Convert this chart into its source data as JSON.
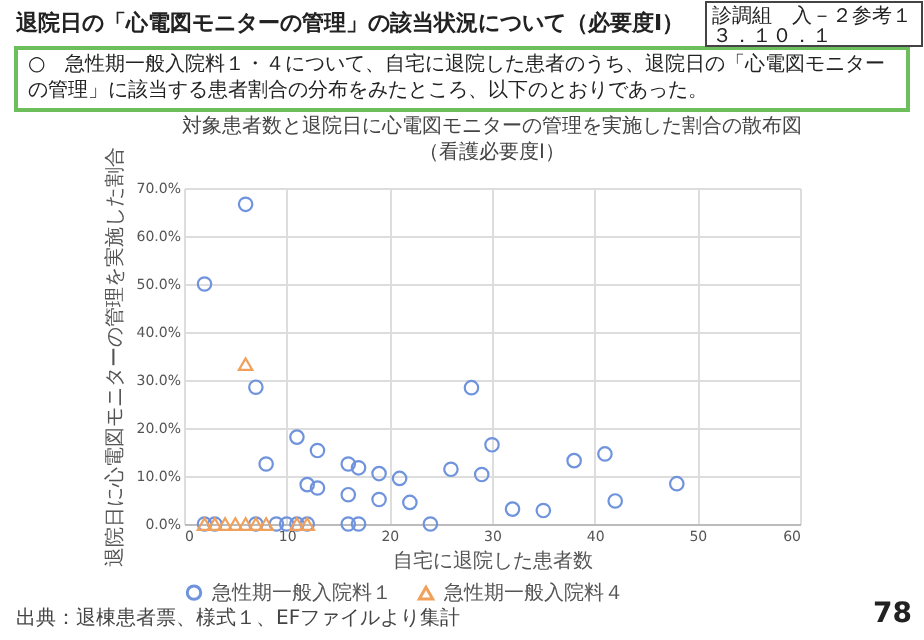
{
  "chart_data": {
    "type": "scatter",
    "title": "対象患者数と退院日に心電図モニターの管理を実施した割合の散布図（看護必要度Ⅰ）",
    "xlabel": "自宅に退院した患者数",
    "ylabel": "退院日に心電図モニターの管理を実施した割合",
    "annotations": [
      "退院日の「心電図モニターの管理」の該当状況について（必要度Ⅰ）",
      "診調組　入－２参考１３．１０．１",
      "○　急性期一般入院料１・４について、自宅に退院した患者のうち、退院日の「心電図モニターの管理」に該当する患者割合の分布をみたところ、以下のとおりであった。",
      "出典：退棟患者票、様式１、EFファイルより集計",
      "78"
    ],
    "xlim": [
      0,
      60
    ],
    "xticks": [
      0,
      10,
      20,
      30,
      40,
      50,
      60
    ],
    "ylim": [
      0,
      70
    ],
    "yticks": [
      {
        "value": 0,
        "label": "0.0%"
      },
      {
        "value": 10,
        "label": "10.0%"
      },
      {
        "value": 20,
        "label": "20.0%"
      },
      {
        "value": 30,
        "label": "30.0%"
      },
      {
        "value": 40,
        "label": "40.0%"
      },
      {
        "value": 50,
        "label": "50.0%"
      },
      {
        "value": 60,
        "label": "60.0%"
      },
      {
        "value": 70,
        "label": "70.0%"
      }
    ],
    "grid": true,
    "legend": "bottom",
    "series": [
      {
        "name": "急性期一般入院料１",
        "color": "#6f93dc",
        "marker": "circle",
        "x": [
          2,
          6,
          7,
          8,
          11,
          12,
          13,
          13,
          16,
          16,
          17,
          19,
          19,
          21,
          22,
          24,
          26,
          28,
          29,
          30,
          32,
          35,
          38,
          41,
          42,
          48,
          2,
          3,
          7,
          9,
          10,
          11,
          12,
          16,
          17
        ],
        "values": [
          50,
          66.6,
          28.5,
          12.5,
          18.1,
          8.2,
          15.3,
          7.5,
          12.5,
          6.1,
          11.7,
          10.5,
          5.1,
          9.5,
          4.5,
          0,
          11.4,
          28.4,
          10.3,
          16.5,
          3.1,
          2.8,
          13.2,
          14.6,
          4.8,
          8.4,
          0,
          0,
          0,
          0,
          0,
          0,
          0,
          0,
          0
        ]
      },
      {
        "name": "急性期一般入院料４",
        "color": "#f0a05a",
        "marker": "triangle",
        "x": [
          6,
          2,
          3,
          4,
          5,
          6,
          7,
          8,
          11,
          12
        ],
        "values": [
          33.3,
          0,
          0,
          0,
          0,
          0,
          0,
          0,
          0,
          0
        ]
      }
    ]
  }
}
